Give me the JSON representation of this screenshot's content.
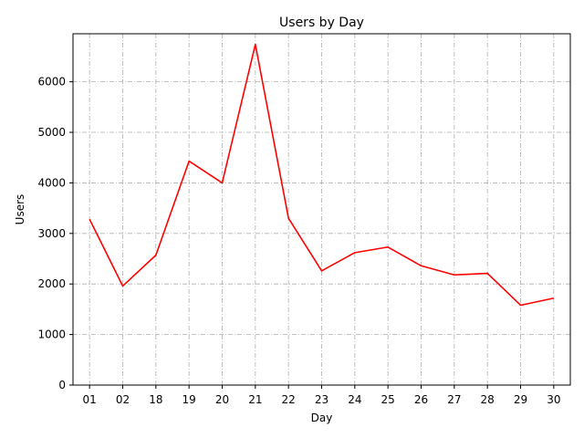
{
  "chart_data": {
    "type": "line",
    "title": "Users by Day",
    "xlabel": "Day",
    "ylabel": "Users",
    "categories": [
      "01",
      "02",
      "18",
      "19",
      "20",
      "21",
      "22",
      "23",
      "24",
      "25",
      "26",
      "27",
      "28",
      "29",
      "30"
    ],
    "series": [
      {
        "values": [
          3280,
          1960,
          2570,
          4430,
          4000,
          6740,
          3300,
          2260,
          2620,
          2730,
          2360,
          2180,
          2210,
          1580,
          1720
        ]
      }
    ],
    "ylim": [
      0,
      6950
    ],
    "yticks": [
      0,
      1000,
      2000,
      3000,
      4000,
      5000,
      6000
    ],
    "grid": true,
    "legend": "none",
    "colors": {
      "line": "#ff0000",
      "grid": "#b0b0b0",
      "axis": "#000000"
    }
  }
}
